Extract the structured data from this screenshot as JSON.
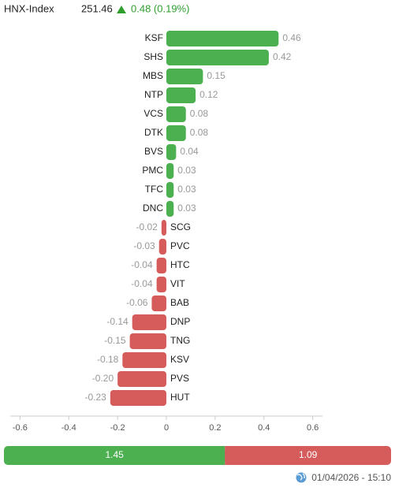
{
  "header": {
    "index_name": "HNX-Index",
    "value": "251.46",
    "change": "0.48 (0.19%)"
  },
  "chart_data": {
    "type": "bar",
    "orientation": "horizontal",
    "categories": [
      "KSF",
      "SHS",
      "MBS",
      "NTP",
      "VCS",
      "DTK",
      "BVS",
      "PMC",
      "TFC",
      "DNC",
      "SCG",
      "PVC",
      "HTC",
      "VIT",
      "BAB",
      "DNP",
      "TNG",
      "KSV",
      "PVS",
      "HUT"
    ],
    "values": [
      0.46,
      0.42,
      0.15,
      0.12,
      0.08,
      0.08,
      0.04,
      0.03,
      0.03,
      0.03,
      -0.02,
      -0.03,
      -0.04,
      -0.04,
      -0.06,
      -0.14,
      -0.15,
      -0.18,
      -0.2,
      -0.23
    ],
    "value_labels": [
      "0.46",
      "0.42",
      "0.15",
      "0.12",
      "0.08",
      "0.08",
      "0.04",
      "0.03",
      "0.03",
      "0.03",
      "-0.02",
      "-0.03",
      "-0.04",
      "-0.04",
      "-0.06",
      "-0.14",
      "-0.15",
      "-0.18",
      "-0.20",
      "-0.23"
    ],
    "positive_color": "#4caf50",
    "negative_color": "#d65c5c",
    "xlim": [
      -0.64,
      0.64
    ],
    "xticks": [
      -0.6,
      -0.4,
      -0.2,
      0,
      0.2,
      0.4,
      0.6
    ]
  },
  "breadth": {
    "advancing": 1.45,
    "declining": 1.09,
    "advancing_color": "#4caf50",
    "declining_color": "#d65c5c"
  },
  "footer": {
    "timestamp": "01/04/2026 - 15:10"
  }
}
